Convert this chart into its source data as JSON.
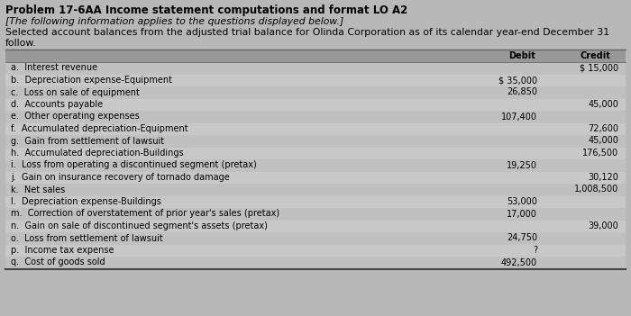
{
  "title": "Problem 17-6AA Income statement computations and format LO A2",
  "subtitle": "[The following information applies to the questions displayed below.]",
  "body_text1": "Selected account balances from the adjusted trial balance for Olinda Corporation as of its calendar year-end December 31",
  "body_text2": "follow.",
  "bg_color": "#b8b8b8",
  "table_bg": "#c8c8c8",
  "header_bg": "#989898",
  "rows": [
    {
      "label": "a.  Interest revenue",
      "debit": "",
      "credit": "$ 15,000"
    },
    {
      "label": "b.  Depreciation expense-Equipment",
      "debit": "$ 35,000",
      "credit": ""
    },
    {
      "label": "c.  Loss on sale of equipment",
      "debit": "26,850",
      "credit": ""
    },
    {
      "label": "d.  Accounts payable",
      "debit": "",
      "credit": "45,000"
    },
    {
      "label": "e.  Other operating expenses",
      "debit": "107,400",
      "credit": ""
    },
    {
      "label": "f.  Accumulated depreciation-Equipment",
      "debit": "",
      "credit": "72,600"
    },
    {
      "label": "g.  Gain from settlement of lawsuit",
      "debit": "",
      "credit": "45,000"
    },
    {
      "label": "h.  Accumulated depreciation-Buildings",
      "debit": "",
      "credit": "176,500"
    },
    {
      "label": "i.  Loss from operating a discontinued segment (pretax)",
      "debit": "19,250",
      "credit": ""
    },
    {
      "label": "j.  Gain on insurance recovery of tornado damage",
      "debit": "",
      "credit": "30,120"
    },
    {
      "label": "k.  Net sales",
      "debit": "",
      "credit": "1,008,500"
    },
    {
      "label": "l.  Depreciation expense-Buildings",
      "debit": "53,000",
      "credit": ""
    },
    {
      "label": "m.  Correction of overstatement of prior year's sales (pretax)",
      "debit": "17,000",
      "credit": ""
    },
    {
      "label": "n.  Gain on sale of discontinued segment's assets (pretax)",
      "debit": "",
      "credit": "39,000"
    },
    {
      "label": "o.  Loss from settlement of lawsuit",
      "debit": "24,750",
      "credit": ""
    },
    {
      "label": "p.  Income tax expense",
      "debit": "?",
      "credit": ""
    },
    {
      "label": "q.  Cost of goods sold",
      "debit": "492,500",
      "credit": ""
    }
  ],
  "col_header_debit": "Debit",
  "col_header_credit": "Credit",
  "title_fontsize": 8.5,
  "subtitle_fontsize": 7.8,
  "body_fontsize": 7.8,
  "table_fontsize": 7.0
}
